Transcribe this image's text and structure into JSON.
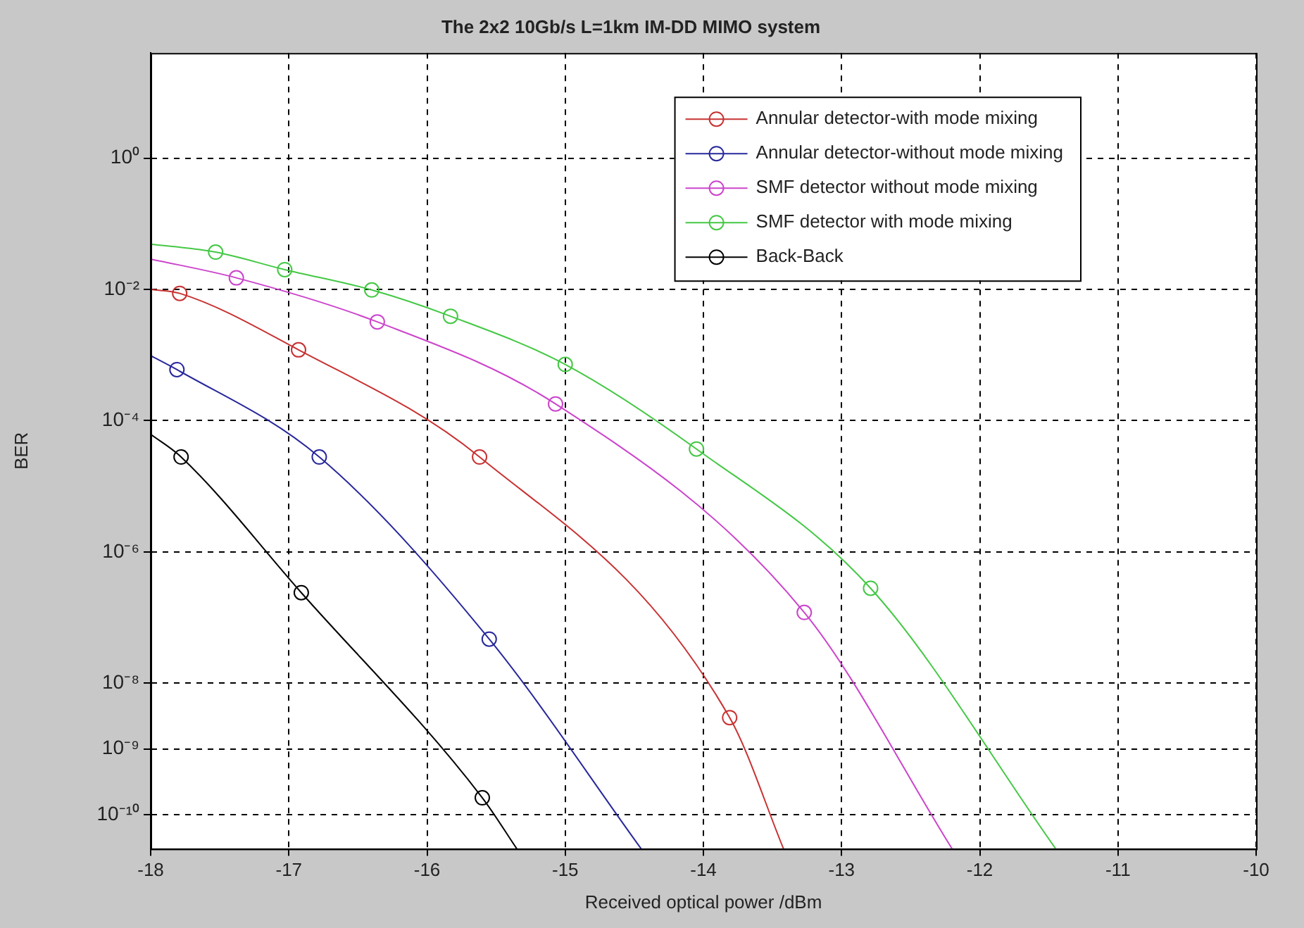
{
  "chart_data": {
    "type": "line",
    "title": "The 2x2 10Gb/s L=1km IM-DD MIMO system",
    "xlabel": "Received optical power /dBm",
    "ylabel": "BER",
    "log": "y",
    "grid": true,
    "legend": "top right",
    "marker": "circle",
    "line_style": "solid",
    "xlim": [
      -18,
      -10
    ],
    "xticks": [
      -18,
      -17,
      -16,
      -15,
      -14,
      -13,
      -12,
      -11,
      -10
    ],
    "ylim": [
      3e-11,
      40
    ],
    "yticks": [
      {
        "value": 1,
        "label": "10⁰"
      },
      {
        "value": 0.01,
        "label": "10⁻²"
      },
      {
        "value": 0.0001,
        "label": "10⁻⁴"
      },
      {
        "value": 1e-06,
        "label": "10⁻⁶"
      },
      {
        "value": 1e-08,
        "label": "10⁻⁸"
      },
      {
        "value": 1e-09,
        "label": "10⁻⁹"
      },
      {
        "value": 1e-10,
        "label": "10⁻¹⁰"
      }
    ],
    "series": [
      {
        "name": "Annular detector-with mode mixing",
        "color": "#c83232",
        "x": [
          -18,
          -17.79,
          -16.93,
          -15.62,
          -13.81,
          -13.42
        ],
        "values": [
          0.01,
          0.0087,
          0.0012,
          2.8e-05,
          3e-09,
          3e-11
        ]
      },
      {
        "name": "Annular detector-without mode mixing",
        "color": "#28289c",
        "x": [
          -18,
          -17.81,
          -16.78,
          -15.55,
          -14.45
        ],
        "values": [
          0.00098,
          0.0006,
          2.8e-05,
          4.7e-08,
          3e-11
        ]
      },
      {
        "name": "SMF detector without mode mixing",
        "color": "#cc44cc",
        "x": [
          -18,
          -17.38,
          -16.36,
          -15.07,
          -13.27,
          -12.2
        ],
        "values": [
          0.029,
          0.015,
          0.0032,
          0.00018,
          1.2e-07,
          3e-11
        ]
      },
      {
        "name": "SMF detector with mode mixing",
        "color": "#44c844",
        "x": [
          -18,
          -17.53,
          -17.03,
          -16.4,
          -15.83,
          -15.0,
          -14.05,
          -12.79,
          -11.45
        ],
        "values": [
          0.049,
          0.037,
          0.02,
          0.0098,
          0.0039,
          0.00072,
          3.7e-05,
          2.8e-07,
          3e-11
        ]
      },
      {
        "name": "Back-Back",
        "color": "#000000",
        "x": [
          -18,
          -17.78,
          -16.91,
          -15.6,
          -15.35
        ],
        "values": [
          6.2e-05,
          2.8e-05,
          2.4e-07,
          1.8e-10,
          3e-11
        ]
      }
    ]
  }
}
